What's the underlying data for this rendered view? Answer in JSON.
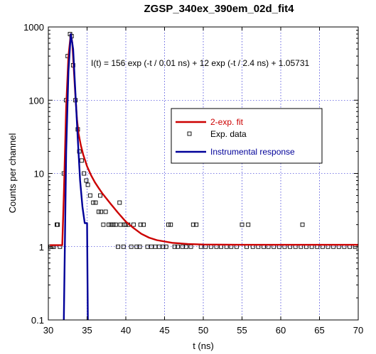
{
  "chart_data": {
    "type": "line",
    "title": "ZGSP_340ex_390em_02d_fit4",
    "xlabel": "t (ns)",
    "ylabel": "Counts per channel",
    "xlim": [
      30,
      70
    ],
    "ylim": [
      0.1,
      1000
    ],
    "yscale": "log",
    "grid": true,
    "legend_position": "center-right",
    "x_ticks": [
      30,
      35,
      40,
      45,
      50,
      55,
      60,
      65,
      70
    ],
    "y_ticks": [
      0.1,
      1,
      10,
      100,
      1000
    ],
    "x_tick_labels": [
      "30",
      "35",
      "40",
      "45",
      "50",
      "55",
      "60",
      "65",
      "70"
    ],
    "y_tick_labels": [
      "0.1",
      "1",
      "10",
      "100",
      "1000"
    ],
    "annotation": "I(t) = 156 exp (-t / 0.01 ns) + 12 exp (-t / 2.4 ns) + 1.05731",
    "legend": [
      {
        "label": "2-exp. fit",
        "color": "#cc0000",
        "marker": "line"
      },
      {
        "label": "Exp. data",
        "color": "#000000",
        "marker": "square"
      },
      {
        "label": "Instrumental response",
        "color": "#000099",
        "marker": "line"
      }
    ],
    "series": [
      {
        "name": "2-exp. fit",
        "color": "#cc0000",
        "style": "line",
        "x": [
          30.2,
          31.8,
          32.0,
          32.3,
          32.6,
          32.9,
          33.1,
          33.3,
          33.5,
          33.7,
          33.9,
          34.2,
          34.5,
          35.0,
          35.5,
          36.0,
          36.5,
          37.0,
          38.0,
          39.0,
          40.0,
          41.0,
          42.0,
          43.0,
          44.0,
          46.0,
          48.0,
          50.0,
          55.0,
          60.0,
          65.0,
          70.0
        ],
        "y": [
          1.05,
          1.05,
          5,
          80,
          400,
          800,
          600,
          250,
          110,
          55,
          35,
          24,
          18,
          12.5,
          9.5,
          7.6,
          6.3,
          5.3,
          3.9,
          2.9,
          2.2,
          1.8,
          1.5,
          1.33,
          1.23,
          1.13,
          1.09,
          1.07,
          1.06,
          1.06,
          1.06,
          1.06
        ]
      },
      {
        "name": "Exp. data",
        "color": "#000000",
        "style": "square",
        "x": [
          30.3,
          30.5,
          30.7,
          31.1,
          31.5,
          32.0,
          32.3,
          32.5,
          32.8,
          33.0,
          33.2,
          33.5,
          33.8,
          34.0,
          34.3,
          34.6,
          34.9,
          35.1,
          35.4,
          35.8,
          36.1,
          36.5,
          36.8,
          37.1,
          37.4,
          37.8,
          38.1,
          38.4,
          38.7,
          39.0,
          39.3,
          39.7,
          40.0,
          40.3,
          40.7,
          41.0,
          41.4,
          41.8,
          42.3,
          42.8,
          43.3,
          43.8,
          44.3,
          44.8,
          45.2,
          45.8,
          46.3,
          46.7,
          47.3,
          47.8,
          48.4,
          49.1,
          49.7,
          50.3,
          51.0,
          51.7,
          52.3,
          53.0,
          53.6,
          54.3,
          55.0,
          55.6,
          56.4,
          57.1,
          57.8,
          58.4,
          59.1,
          59.8,
          60.5,
          61.2,
          61.9,
          62.6,
          63.3,
          64.0,
          64.7,
          65.4,
          66.1,
          66.8,
          67.5,
          68.2,
          68.9,
          69.6,
          31.2,
          36.7,
          39.2,
          45.5,
          48.7,
          55.8,
          62.8,
          39.8,
          41.9
        ],
        "y": [
          1,
          1,
          1,
          2,
          1,
          10,
          100,
          400,
          800,
          750,
          300,
          100,
          40,
          20,
          15,
          10,
          8,
          7,
          5,
          4,
          4,
          3,
          3,
          2,
          3,
          2,
          2,
          2,
          2,
          1,
          2,
          1,
          2,
          2,
          1,
          2,
          1,
          1,
          2,
          1,
          1,
          1,
          1,
          1,
          1,
          2,
          1,
          1,
          1,
          1,
          1,
          2,
          1,
          1,
          1,
          1,
          1,
          1,
          1,
          1,
          2,
          1,
          1,
          1,
          1,
          1,
          1,
          1,
          1,
          1,
          1,
          1,
          1,
          1,
          1,
          1,
          1,
          1,
          1,
          1,
          1,
          1,
          2,
          5,
          4,
          2,
          2,
          2,
          2,
          2,
          2
        ]
      },
      {
        "name": "Instrumental response",
        "color": "#000099",
        "style": "line",
        "x": [
          32.0,
          32.3,
          32.6,
          32.9,
          33.2,
          33.5,
          33.8,
          34.1,
          34.4,
          34.7,
          35.0,
          35.05,
          35.1
        ],
        "y": [
          0.1,
          20,
          250,
          800,
          500,
          120,
          30,
          8,
          3.5,
          2.1,
          2.1,
          0.5,
          0.1
        ]
      }
    ]
  }
}
